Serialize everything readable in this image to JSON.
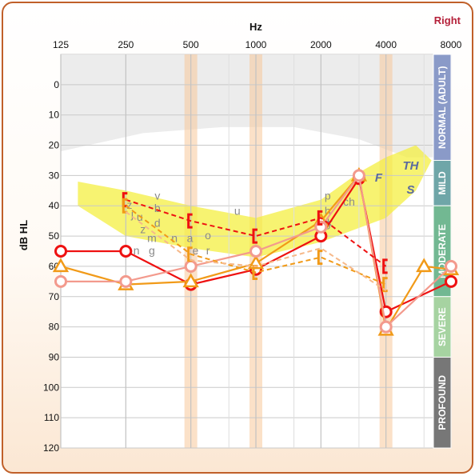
{
  "ear_label": "Right",
  "chart_data": {
    "type": "scatter",
    "title": "",
    "xlabel": "Hz",
    "ylabel": "dB HL",
    "x_scale": "log2",
    "xlim": [
      125,
      8000
    ],
    "ylim": [
      -10,
      120
    ],
    "y_reversed": true,
    "x_ticks": [
      "125",
      "250",
      "500",
      "1000",
      "2000",
      "4000",
      "8000"
    ],
    "x_tick_values": [
      125,
      250,
      500,
      1000,
      2000,
      4000,
      8000
    ],
    "y_ticks": [
      "0",
      "10",
      "20",
      "30",
      "40",
      "50",
      "60",
      "70",
      "80",
      "90",
      "100",
      "110",
      "120"
    ],
    "y_tick_values": [
      0,
      10,
      20,
      30,
      40,
      50,
      60,
      70,
      80,
      90,
      100,
      110,
      120
    ],
    "grid": true,
    "severity_bands": [
      {
        "label": "NORMAL (ADULT)",
        "from": -10,
        "to": 25,
        "color": "#8a9ac8"
      },
      {
        "label": "MILD",
        "from": 25,
        "to": 40,
        "color": "#6fa6a8"
      },
      {
        "label": "MODERATE",
        "from": 40,
        "to": 70,
        "color": "#72b892"
      },
      {
        "label": "SEVERE",
        "from": 70,
        "to": 90,
        "color": "#a6d3a1"
      },
      {
        "label": "PROFOUND",
        "from": 90,
        "to": 120,
        "color": "#777777"
      }
    ],
    "speech_sounds": [
      {
        "text": "v",
        "x": 350,
        "y": 38
      },
      {
        "text": "z",
        "x": 260,
        "y": 41
      },
      {
        "text": "j",
        "x": 268,
        "y": 44
      },
      {
        "text": "b",
        "x": 350,
        "y": 42
      },
      {
        "text": "u",
        "x": 290,
        "y": 45
      },
      {
        "text": "z",
        "x": 300,
        "y": 49
      },
      {
        "text": "d",
        "x": 350,
        "y": 47
      },
      {
        "text": "m",
        "x": 330,
        "y": 52
      },
      {
        "text": "a",
        "x": 495,
        "y": 52
      },
      {
        "text": "o",
        "x": 600,
        "y": 51
      },
      {
        "text": "n",
        "x": 420,
        "y": 52
      },
      {
        "text": "n",
        "x": 280,
        "y": 56
      },
      {
        "text": "g",
        "x": 330,
        "y": 56
      },
      {
        "text": "r",
        "x": 600,
        "y": 56
      },
      {
        "text": "u",
        "x": 820,
        "y": 43
      },
      {
        "text": "e",
        "x": 525,
        "y": 56
      },
      {
        "text": "p",
        "x": 2150,
        "y": 38
      },
      {
        "text": "h",
        "x": 2150,
        "y": 43
      },
      {
        "text": "g",
        "x": 2150,
        "y": 47
      },
      {
        "text": "k",
        "x": 2200,
        "y": 47
      },
      {
        "text": "ch",
        "x": 2700,
        "y": 40
      },
      {
        "text": "F",
        "x": 3700,
        "y": 32,
        "italic": true
      },
      {
        "text": "TH",
        "x": 5200,
        "y": 28,
        "italic": true
      },
      {
        "text": "S",
        "x": 5200,
        "y": 36,
        "italic": true
      }
    ],
    "speech_banana": [
      [
        150,
        32
      ],
      [
        250,
        35
      ],
      [
        500,
        40
      ],
      [
        1000,
        44
      ],
      [
        2000,
        38
      ],
      [
        3000,
        29
      ],
      [
        4000,
        24
      ],
      [
        5500,
        20
      ],
      [
        6500,
        25
      ],
      [
        5500,
        35
      ],
      [
        4000,
        44
      ],
      [
        2000,
        52
      ],
      [
        1000,
        57
      ],
      [
        500,
        54
      ],
      [
        250,
        50
      ],
      [
        150,
        40
      ]
    ],
    "normal_region": [
      [
        125,
        -10
      ],
      [
        8000,
        -10
      ],
      [
        8000,
        24
      ],
      [
        5000,
        24
      ],
      [
        3000,
        18
      ],
      [
        1500,
        14
      ],
      [
        700,
        14
      ],
      [
        300,
        16
      ],
      [
        125,
        22
      ]
    ],
    "series": [
      {
        "name": "",
        "symbol": "circle",
        "color": "#ee1111",
        "style": "solid",
        "points": [
          [
            125,
            55
          ],
          [
            250,
            55
          ],
          [
            500,
            66
          ],
          [
            1000,
            61
          ],
          [
            2000,
            50
          ],
          [
            3000,
            31
          ],
          [
            4000,
            75
          ],
          [
            8000,
            65
          ]
        ]
      },
      {
        "name": "",
        "symbol": "triangle",
        "color": "#f19a18",
        "style": "solid",
        "points": [
          [
            125,
            60
          ],
          [
            250,
            66
          ],
          [
            500,
            65
          ],
          [
            1000,
            59
          ],
          [
            2000,
            45
          ],
          [
            3000,
            30
          ],
          [
            4000,
            81
          ],
          [
            6000,
            60
          ],
          [
            8000,
            61
          ]
        ]
      },
      {
        "name": "",
        "symbol": "circle",
        "color": "#f39a8d",
        "style": "solid",
        "points": [
          [
            125,
            65
          ],
          [
            250,
            65
          ],
          [
            500,
            60
          ],
          [
            1000,
            55
          ],
          [
            2000,
            47
          ],
          [
            3000,
            30
          ],
          [
            4000,
            80
          ],
          [
            8000,
            60
          ]
        ]
      },
      {
        "name": "",
        "symbol": "bracket",
        "color": "#ee1111",
        "style": "dashed",
        "points": [
          [
            250,
            38
          ],
          [
            500,
            45
          ],
          [
            1000,
            50
          ],
          [
            2000,
            44
          ],
          [
            4000,
            60
          ]
        ]
      },
      {
        "name": "",
        "symbol": "bracket",
        "color": "#f19a18",
        "style": "dashed",
        "points": [
          [
            250,
            40
          ],
          [
            500,
            56
          ],
          [
            1000,
            62
          ],
          [
            2000,
            57
          ],
          [
            4000,
            66
          ]
        ]
      },
      {
        "name": "",
        "symbol": "none",
        "color": "#f6b98a",
        "style": "dashed",
        "points": [
          [
            250,
            42
          ],
          [
            500,
            58
          ],
          [
            1000,
            60
          ],
          [
            2000,
            54
          ],
          [
            4000,
            68
          ]
        ]
      }
    ]
  }
}
